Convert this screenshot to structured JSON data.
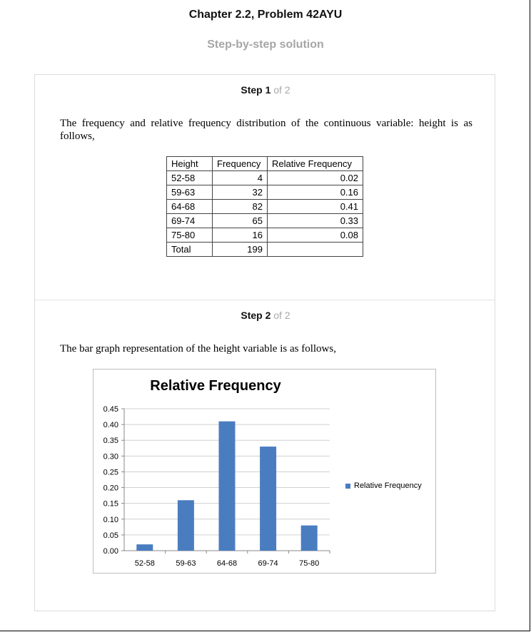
{
  "header": {
    "title": "Chapter 2.2, Problem 42AYU",
    "subtitle": "Step-by-step solution"
  },
  "step1": {
    "label": "Step 1",
    "of": "of 2",
    "text": "The frequency and relative frequency distribution of the continuous variable: height is as follows,",
    "table": {
      "headers": [
        "Height",
        "Frequency",
        "Relative Frequency"
      ],
      "rows": [
        [
          "52-58",
          "4",
          "0.02"
        ],
        [
          "59-63",
          "32",
          "0.16"
        ],
        [
          "64-68",
          "82",
          "0.41"
        ],
        [
          "69-74",
          "65",
          "0.33"
        ],
        [
          "75-80",
          "16",
          "0.08"
        ],
        [
          "Total",
          "199",
          ""
        ]
      ]
    }
  },
  "step2": {
    "label": "Step 2",
    "of": "of 2",
    "text": "The bar graph representation of the height variable is as follows,"
  },
  "chart_data": {
    "type": "bar",
    "title": "Relative Frequency",
    "categories": [
      "52-58",
      "59-63",
      "64-68",
      "69-74",
      "75-80"
    ],
    "series": [
      {
        "name": "Relative Frequency",
        "values": [
          0.02,
          0.16,
          0.41,
          0.33,
          0.08
        ]
      }
    ],
    "ylim": [
      0,
      0.45
    ],
    "yticks": [
      "0.00",
      "0.05",
      "0.10",
      "0.15",
      "0.20",
      "0.25",
      "0.30",
      "0.35",
      "0.40",
      "0.45"
    ],
    "grid": true,
    "legend": "right",
    "bar_color": "#4a7dc0"
  }
}
